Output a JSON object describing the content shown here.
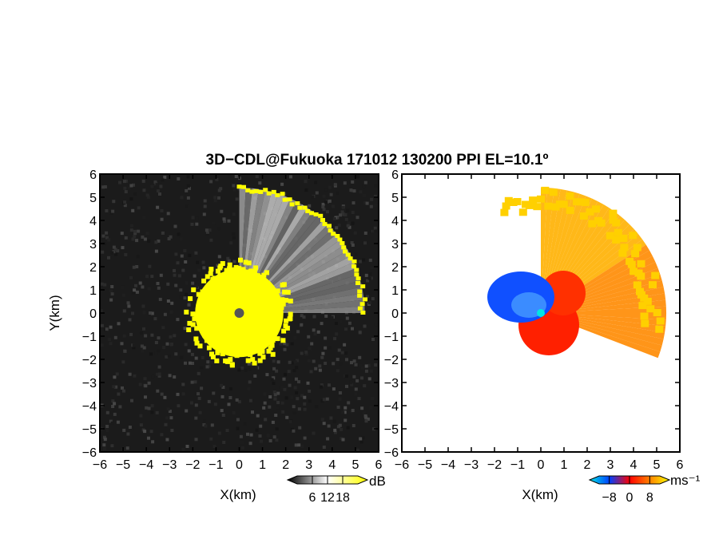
{
  "chart_data": {
    "title": "3D−CDL@Fukuoka 171012 130200 PPI EL=10.1º",
    "panels": [
      {
        "type": "heatmap",
        "quantity": "reflectivity / SNR",
        "xlabel": "X(km)",
        "ylabel": "Y(km)",
        "xlim": [
          -6,
          6
        ],
        "ylim": [
          -6,
          6
        ],
        "xticks": [
          "−6",
          "−5",
          "−4",
          "−3",
          "−2",
          "−1",
          "0",
          "1",
          "2",
          "3",
          "4",
          "5",
          "6"
        ],
        "yticks": [
          "6",
          "5",
          "4",
          "3",
          "2",
          "1",
          "0",
          "−1",
          "−2",
          "−3",
          "−4",
          "−5",
          "−6"
        ],
        "colorbar": {
          "unit": "dB",
          "ticks": [
            "6",
            "12",
            "18"
          ],
          "range": [
            0,
            24
          ],
          "colors": [
            "#000000",
            "#ffffff",
            "#ffff00"
          ]
        },
        "features": {
          "echo_sector_deg": [
            0,
            90
          ],
          "echo_max_range_km": 5.4,
          "saturated_core_radius_km": 2.0,
          "radar_site": [
            0,
            0
          ]
        }
      },
      {
        "type": "heatmap",
        "quantity": "doppler velocity",
        "xlabel": "X(km)",
        "xlim": [
          -6,
          6
        ],
        "ylim": [
          -6,
          6
        ],
        "xticks": [
          "−6",
          "−5",
          "−4",
          "−3",
          "−2",
          "−1",
          "0",
          "1",
          "2",
          "3",
          "4",
          "5",
          "6"
        ],
        "yticks": [
          "6",
          "5",
          "4",
          "3",
          "2",
          "1",
          "0",
          "−1",
          "−2",
          "−3",
          "−4",
          "−5",
          "−6"
        ],
        "colorbar": {
          "unit": "ms⁻¹",
          "ticks": [
            "−8",
            "0",
            "8"
          ],
          "range": [
            -12,
            12
          ],
          "colors": [
            "#00e5e5",
            "#0040ff",
            "#ff0000",
            "#ff8000",
            "#ffff00"
          ]
        },
        "features": {
          "negative_velocity_region": "west of radar, within 2 km",
          "positive_velocity_region": "north-east sector up to 5.5 km",
          "radar_site": [
            0,
            0
          ]
        }
      }
    ]
  }
}
